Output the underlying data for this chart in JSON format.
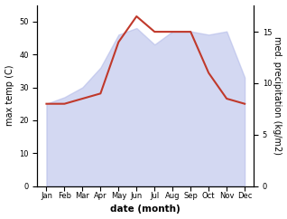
{
  "months": [
    "Jan",
    "Feb",
    "Mar",
    "Apr",
    "May",
    "Jun",
    "Jul",
    "Aug",
    "Sep",
    "Oct",
    "Nov",
    "Dec"
  ],
  "month_indices": [
    0,
    1,
    2,
    3,
    4,
    5,
    6,
    7,
    8,
    9,
    10,
    11
  ],
  "temperature": [
    25,
    27,
    30,
    36,
    46,
    48,
    43,
    47,
    47,
    46,
    47,
    33
  ],
  "precipitation": [
    8.0,
    8.0,
    8.5,
    9.0,
    14.0,
    16.5,
    15.0,
    15.0,
    15.0,
    11.0,
    8.5,
    8.0
  ],
  "fill_color": "#b0b8e8",
  "fill_alpha": 0.55,
  "precip_color": "#c0392b",
  "xlabel": "date (month)",
  "ylabel_left": "max temp (C)",
  "ylabel_right": "med. precipitation (kg/m2)",
  "ylim_left": [
    0,
    55
  ],
  "ylim_right": [
    0,
    17.6
  ],
  "yticks_left": [
    0,
    10,
    20,
    30,
    40,
    50
  ],
  "yticks_right": [
    0,
    5,
    10,
    15
  ],
  "background_color": "#ffffff",
  "axis_fontsize": 7,
  "tick_fontsize": 6,
  "xlabel_fontsize": 7.5
}
